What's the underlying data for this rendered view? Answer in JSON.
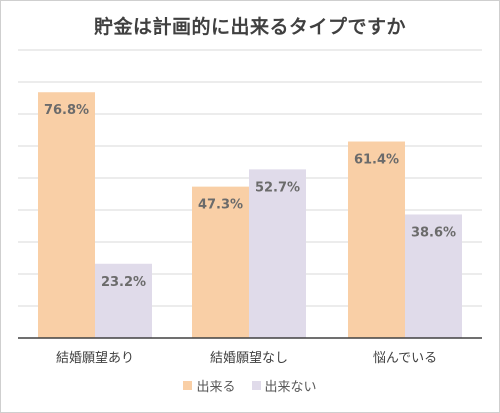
{
  "chart_data": {
    "type": "bar",
    "title": "貯金は計画的に出来るタイプですか",
    "categories": [
      "結婚願望あり",
      "結婚願望なし",
      "悩んでいる"
    ],
    "series": [
      {
        "name": "出来る",
        "values": [
          76.8,
          47.3,
          61.4
        ],
        "labels": [
          "76.8%",
          "47.3%",
          "61.4%"
        ],
        "color": "#f9cfa6"
      },
      {
        "name": "出来ない",
        "values": [
          23.2,
          52.7,
          38.6
        ],
        "labels": [
          "23.2%",
          "52.7%",
          "38.6%"
        ],
        "color": "#e0dbea"
      }
    ],
    "ylim": [
      0,
      90
    ],
    "grid": true,
    "legend_position": "bottom",
    "label_color": "#6b6b6b"
  }
}
